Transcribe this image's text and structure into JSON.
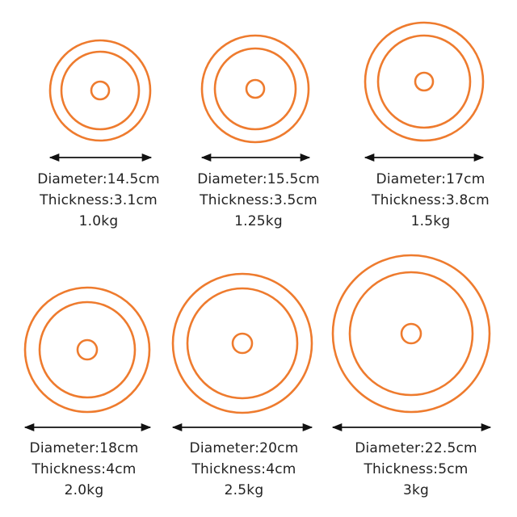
{
  "accent_color": "#ee7b2e",
  "arrow_color": "#111111",
  "plates": [
    {
      "diameter": "Diameter:14.5cm",
      "thickness": "Thickness:3.1cm",
      "weight": "1.0kg"
    },
    {
      "diameter": "Diameter:15.5cm",
      "thickness": "Thickness:3.5cm",
      "weight": "1.25kg"
    },
    {
      "diameter": "Diameter:17cm",
      "thickness": "Thickness:3.8cm",
      "weight": "1.5kg"
    },
    {
      "diameter": "Diameter:18cm",
      "thickness": "Thickness:4cm",
      "weight": "2.0kg"
    },
    {
      "diameter": "Diameter:20cm",
      "thickness": "Thickness:4cm",
      "weight": "2.5kg"
    },
    {
      "diameter": "Diameter:22.5cm",
      "thickness": "Thickness:5cm",
      "weight": "3kg"
    }
  ]
}
